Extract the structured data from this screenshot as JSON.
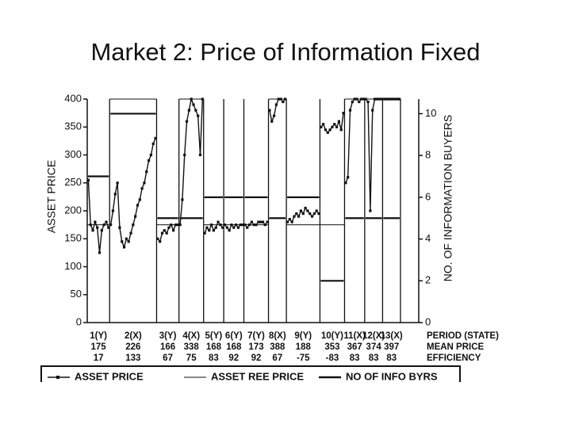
{
  "chart_data": {
    "type": "line",
    "title": "Market 2: Price of Information Fixed",
    "ylabel": "ASSET PRICE",
    "y2label": "NO. OF INFORMATION BUYERS",
    "ylim": [
      0,
      400
    ],
    "yticks": [
      0,
      50,
      100,
      150,
      200,
      250,
      300,
      350,
      400
    ],
    "y2lim": [
      0,
      10.7
    ],
    "y2ticks": [
      0,
      2,
      4,
      6,
      8,
      10
    ],
    "row_labels": [
      "PERIOD (STATE)",
      "MEAN PRICE",
      "EFFICIENCY"
    ],
    "periods": [
      "1(Y)",
      "2(X)",
      "3(Y)",
      "4(X)",
      "5(Y)",
      "6(Y)",
      "7(Y)",
      "8(X)",
      "9(Y)",
      "10(Y)",
      "11(X)",
      "12(X)",
      "13(X)"
    ],
    "mean_price": [
      175,
      226,
      166,
      338,
      168,
      168,
      173,
      388,
      188,
      353,
      367,
      374,
      397
    ],
    "efficiency": [
      17,
      133,
      67,
      75,
      83,
      92,
      92,
      67,
      -75,
      -83,
      83,
      83,
      83
    ],
    "series": [
      {
        "name": "ASSET PRICE",
        "color": "#111111",
        "values": [
          [
            255,
            175,
            165,
            180,
            170,
            125,
            165,
            175,
            180,
            170
          ],
          [
            175,
            200,
            230,
            250,
            170,
            145,
            135,
            150,
            145,
            160,
            175,
            190,
            210,
            220,
            240,
            250,
            270,
            290,
            300,
            320,
            330
          ],
          [
            150,
            145,
            160,
            165,
            160,
            170,
            175,
            165,
            175,
            175
          ],
          [
            175,
            220,
            300,
            360,
            380,
            400,
            390,
            380,
            370,
            300,
            400
          ],
          [
            160,
            170,
            165,
            175,
            165,
            170,
            180,
            175,
            170
          ],
          [
            175,
            170,
            165,
            175,
            170,
            175,
            170,
            175,
            175
          ],
          [
            175,
            170,
            175,
            180,
            175,
            175,
            180,
            180,
            180,
            175,
            180
          ],
          [
            380,
            360,
            370,
            390,
            400,
            400,
            395,
            400
          ],
          [
            180,
            185,
            180,
            190,
            195,
            190,
            200,
            195,
            205,
            200,
            195,
            190,
            195,
            200,
            195
          ],
          [
            350,
            355,
            345,
            340,
            345,
            350,
            355,
            350,
            360,
            345,
            375
          ],
          [
            250,
            260,
            380,
            395,
            400,
            400,
            395,
            400,
            400
          ],
          [
            400,
            395,
            200,
            380,
            400,
            400,
            400,
            400
          ],
          [
            400,
            400,
            400,
            400,
            400,
            400,
            400,
            400
          ]
        ]
      },
      {
        "name": "ASSET REE PRICE",
        "color": "#111111",
        "values": [
          175,
          400,
          175,
          400,
          175,
          175,
          175,
          400,
          175,
          175,
          400,
          400,
          400
        ]
      },
      {
        "name": "NO OF INFO BYRS",
        "color": "#111111",
        "axis": "y2",
        "values": [
          7,
          10,
          5,
          5,
          6,
          6,
          6,
          5,
          6,
          2,
          5,
          5,
          5
        ]
      }
    ]
  }
}
